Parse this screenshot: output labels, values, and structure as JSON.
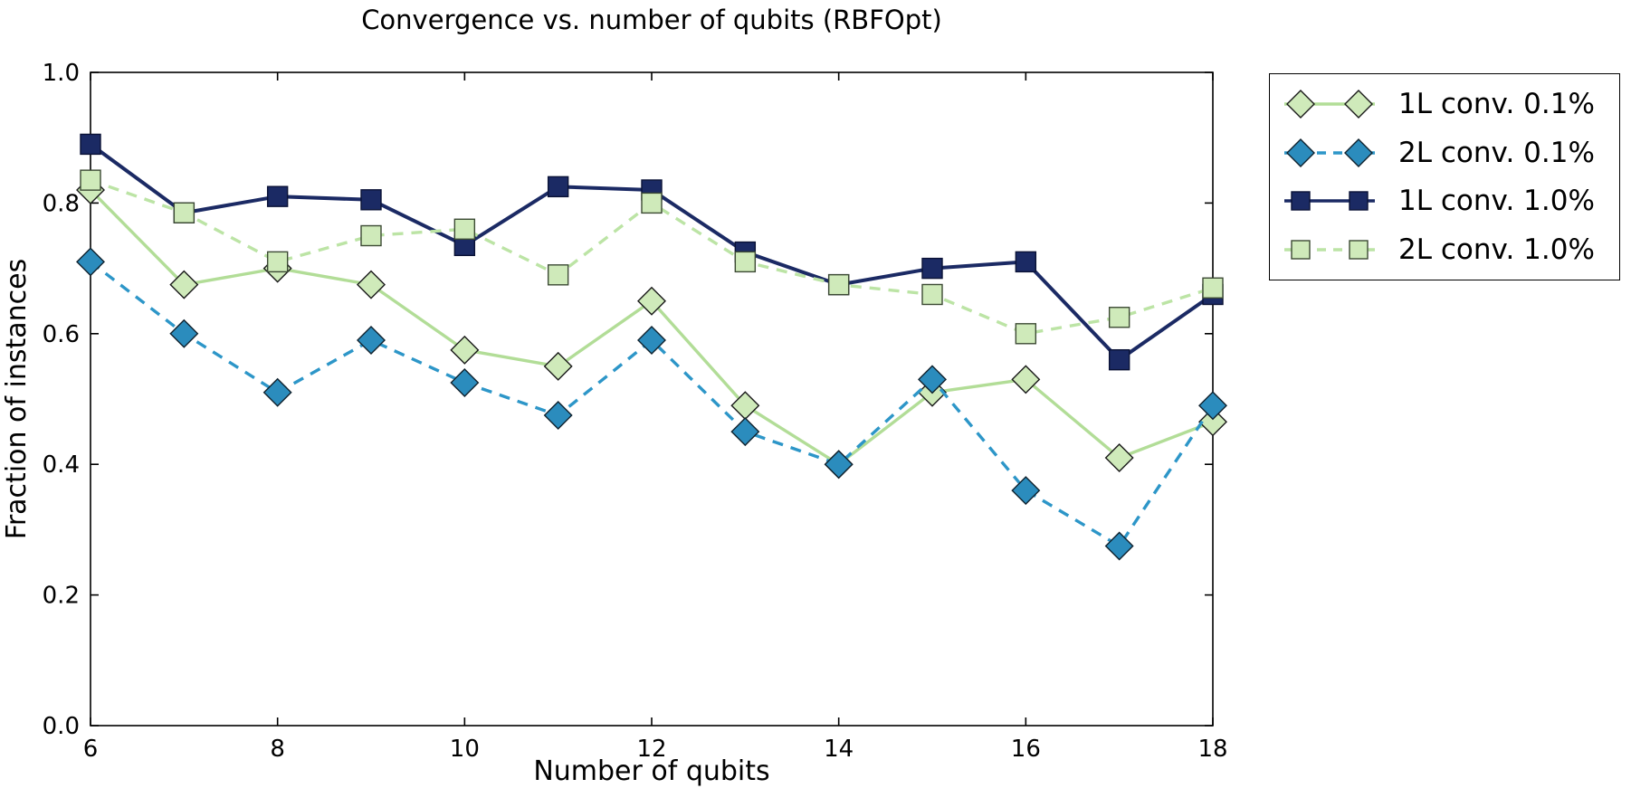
{
  "figure": {
    "title": "Convergence vs. number of qubits (RBFOpt)",
    "background": "#ffffff"
  },
  "chart_data": {
    "type": "line",
    "title": "Convergence vs. number of qubits (RBFOpt)",
    "xlabel": "Number of qubits",
    "ylabel": "Fraction of instances",
    "xlim": [
      6,
      18
    ],
    "ylim": [
      0.0,
      1.0
    ],
    "grid": false,
    "legend_position": "outside-upper-right",
    "xticks": {
      "values": [
        6,
        8,
        10,
        12,
        14,
        16,
        18
      ],
      "labels": [
        "6",
        "8",
        "10",
        "12",
        "14",
        "16",
        "18"
      ]
    },
    "yticks": {
      "values": [
        0.0,
        0.2,
        0.4,
        0.6,
        0.8,
        1.0
      ],
      "labels": [
        "0.0",
        "0.2",
        "0.4",
        "0.6",
        "0.8",
        "1.0"
      ]
    },
    "x": [
      6,
      7,
      8,
      9,
      10,
      11,
      12,
      13,
      14,
      15,
      16,
      17,
      18
    ],
    "series": [
      {
        "name": "1L conv. 0.1%",
        "marker": "diamond",
        "line_style": "solid",
        "line_color": "#b2dd97",
        "marker_fill": "#cfeaba",
        "marker_edge": "#1a1a1a",
        "values": [
          0.82,
          0.675,
          0.7,
          0.675,
          0.575,
          0.55,
          0.65,
          0.49,
          0.4,
          0.51,
          0.53,
          0.41,
          0.465
        ]
      },
      {
        "name": "2L conv. 0.1%",
        "marker": "diamond",
        "line_style": "dashed",
        "line_color": "#2d96c8",
        "marker_fill": "#2b8cbd",
        "marker_edge": "#10222e",
        "values": [
          0.71,
          0.6,
          0.51,
          0.59,
          0.525,
          0.475,
          0.59,
          0.45,
          0.4,
          0.53,
          0.36,
          0.275,
          0.49
        ]
      },
      {
        "name": "1L conv. 1.0%",
        "marker": "square",
        "line_style": "solid",
        "line_color": "#1b2a64",
        "marker_fill": "#1b2a64",
        "marker_edge": "#0a1236",
        "values": [
          0.89,
          0.785,
          0.81,
          0.805,
          0.735,
          0.825,
          0.82,
          0.725,
          0.675,
          0.7,
          0.71,
          0.56,
          0.66
        ]
      },
      {
        "name": "2L conv. 1.0%",
        "marker": "square",
        "line_style": "dashed",
        "line_color": "#bce4a5",
        "marker_fill": "#cfeaba",
        "marker_edge": "#3c4a34",
        "values": [
          0.835,
          0.785,
          0.71,
          0.75,
          0.76,
          0.69,
          0.8,
          0.71,
          0.675,
          0.66,
          0.6,
          0.625,
          0.67
        ]
      }
    ]
  }
}
